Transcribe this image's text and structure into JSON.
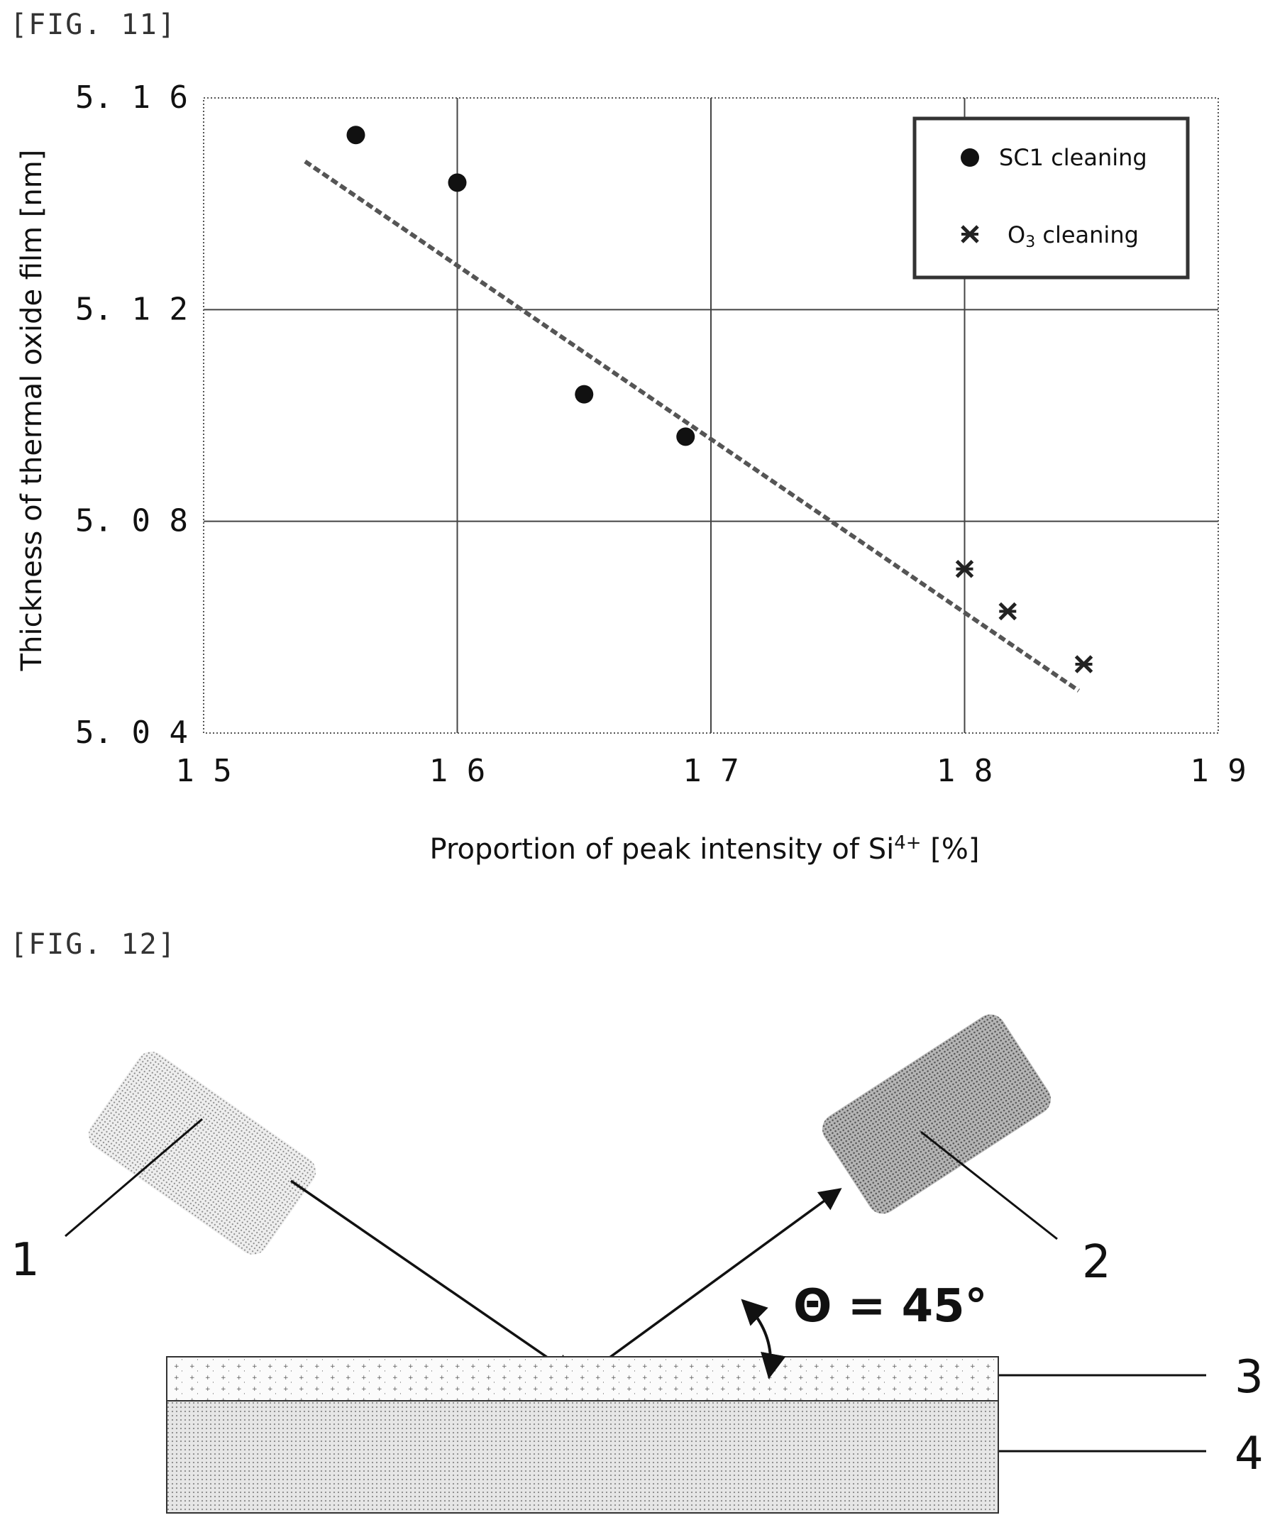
{
  "figures": {
    "fig11_label": "[FIG. 11]",
    "fig12_label": "[FIG. 12]"
  },
  "chart_data": {
    "type": "scatter",
    "xlabel": "Proportion of peak intensity of Si4+ [%]",
    "xlabel_main": "Proportion of peak intensity of Si",
    "xlabel_sup": "4+",
    "xlabel_unit": "[%]",
    "ylabel": "Thickness of thermal oxide film [nm]",
    "xlim": [
      15,
      19
    ],
    "ylim": [
      5.04,
      5.16
    ],
    "x_ticks": [
      15,
      16,
      17,
      18,
      19
    ],
    "x_tick_labels": [
      "1 5",
      "1 6",
      "1 7",
      "1 8",
      "1 9"
    ],
    "y_ticks": [
      5.04,
      5.08,
      5.12,
      5.16
    ],
    "y_tick_labels": [
      "5. 0 4",
      "5. 0 8",
      "5. 1 2",
      "5. 1 6"
    ],
    "grid": true,
    "legend_position": "top-right",
    "series": [
      {
        "name": "SC1 cleaning",
        "marker": "circle",
        "points": [
          [
            15.6,
            5.153
          ],
          [
            16.0,
            5.144
          ],
          [
            16.5,
            5.104
          ],
          [
            16.9,
            5.096
          ]
        ]
      },
      {
        "name": "O3 cleaning",
        "name_main": "O",
        "name_sub": "3",
        "name_rest": " cleaning",
        "marker": "star",
        "points": [
          [
            18.0,
            5.071
          ],
          [
            18.17,
            5.063
          ],
          [
            18.47,
            5.053
          ]
        ]
      }
    ],
    "trendline": {
      "style": "dashed",
      "x": [
        15.4,
        18.45
      ],
      "y": [
        5.148,
        5.048
      ]
    }
  },
  "diagram": {
    "labels": [
      "1",
      "2",
      "3",
      "4"
    ],
    "angle_label": "Θ = 45°",
    "colors": {
      "source": "#d2d2d2",
      "detector": "#9a9a9a",
      "film": "#f4f4f4",
      "substrate": "#dedede"
    }
  }
}
